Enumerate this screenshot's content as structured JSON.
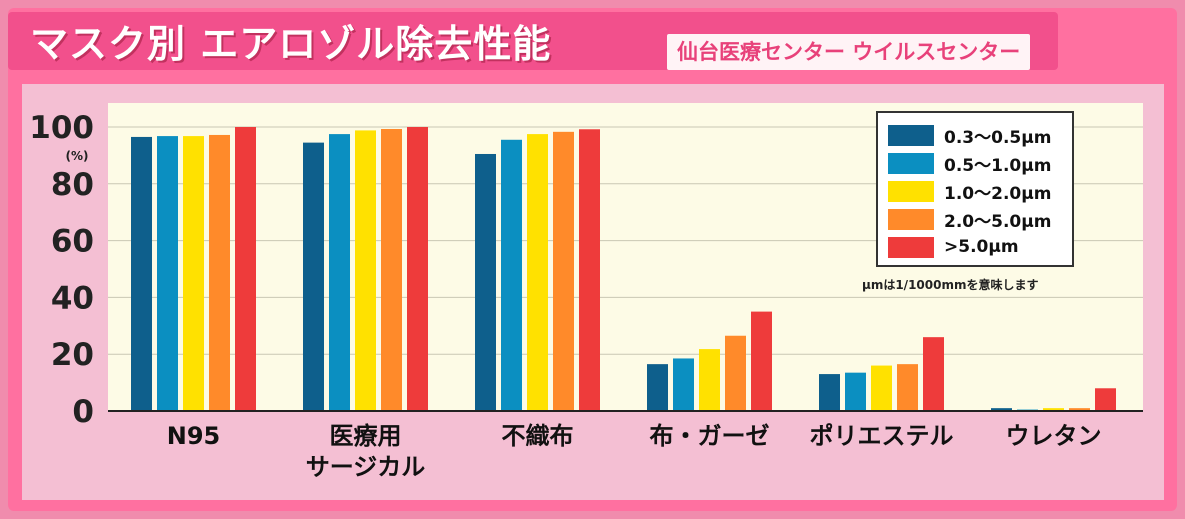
{
  "header": {
    "title": "マスク別 エアロゾル除去性能",
    "credit": "仙台医療センター ウイルスセンター"
  },
  "chart_data": {
    "type": "bar",
    "title": "マスク別 エアロゾル除去性能",
    "unit_label": "(%)",
    "ylim": [
      0,
      100
    ],
    "yticks": [
      "0",
      "20",
      "40",
      "60",
      "80",
      "100"
    ],
    "grid": true,
    "legend_position": "top-right",
    "categories": [
      [
        "N95"
      ],
      [
        "医療用",
        "サージカル"
      ],
      [
        "不織布"
      ],
      [
        "布・ガーゼ"
      ],
      [
        "ポリエステル"
      ],
      [
        "ウレタン"
      ]
    ],
    "series": [
      {
        "name": "0.3〜0.5μm",
        "color": "#0e5f8c",
        "values": [
          96.5,
          94.5,
          90.5,
          16.5,
          13,
          1
        ]
      },
      {
        "name": "0.5〜1.0μm",
        "color": "#0b8fc1",
        "values": [
          96.8,
          97.5,
          95.5,
          18.5,
          13.5,
          0.5
        ]
      },
      {
        "name": "1.0〜2.0μm",
        "color": "#ffe100",
        "values": [
          96.8,
          98.8,
          97.5,
          21.8,
          16,
          1
        ]
      },
      {
        "name": "2.0〜5.0μm",
        "color": "#ff8a2a",
        "values": [
          97.2,
          99.3,
          98.3,
          26.5,
          16.5,
          1
        ]
      },
      {
        "name": ">5.0μm",
        "color": "#ee3b3b",
        "values": [
          100,
          100,
          99.2,
          35,
          26,
          8
        ]
      }
    ],
    "note": "μmは1/1000mmを意味します"
  }
}
